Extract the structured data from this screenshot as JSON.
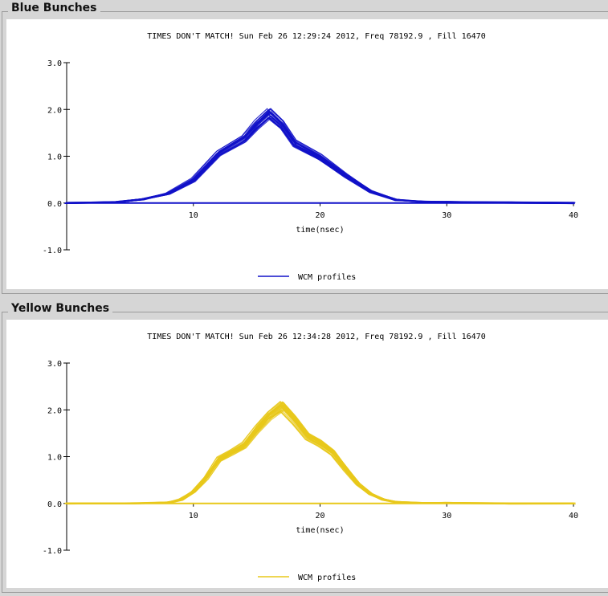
{
  "panels": [
    {
      "title": "Blue Bunches",
      "chart_data": {
        "type": "line",
        "title": "TIMES DON'T MATCH!   Sun Feb 26 12:29:24 2012, Freq 78192.9 , Fill 16470",
        "xlabel": "time(nsec)",
        "ylabel": "",
        "xlim": [
          0,
          40
        ],
        "ylim": [
          -1.0,
          3.0
        ],
        "xticks": [
          10,
          20,
          30,
          40
        ],
        "yticks": [
          "3.0",
          "2.0",
          "1.0",
          "0.0",
          "-1.0"
        ],
        "legend": "bottom-center",
        "color": "#1010c8",
        "series": [
          {
            "name": "WCM profiles",
            "x": [
              0,
              4,
              6,
              8,
              10,
              12,
              14,
              15,
              16,
              17,
              18,
              20,
              22,
              24,
              26,
              28,
              30,
              35,
              40
            ],
            "y": [
              0.0,
              0.02,
              0.08,
              0.2,
              0.5,
              1.08,
              1.4,
              1.7,
              1.95,
              1.7,
              1.3,
              1.0,
              0.6,
              0.25,
              0.07,
              0.03,
              0.02,
              0.01,
              0.0
            ]
          }
        ]
      }
    },
    {
      "title": "Yellow Bunches",
      "chart_data": {
        "type": "line",
        "title": "TIMES DON'T MATCH!   Sun Feb 26 12:34:28 2012, Freq 78192.9 , Fill 16470",
        "xlabel": "time(nsec)",
        "ylabel": "",
        "xlim": [
          0,
          40
        ],
        "ylim": [
          -1.0,
          3.0
        ],
        "xticks": [
          10,
          20,
          30,
          40
        ],
        "yticks": [
          "3.0",
          "2.0",
          "1.0",
          "0.0",
          "-1.0"
        ],
        "legend": "bottom-center",
        "color": "#e8c81a",
        "series": [
          {
            "name": "WCM profiles",
            "x": [
              0,
              5,
              8,
              9,
              10,
              11,
              12,
              13,
              14,
              15,
              16,
              17,
              18,
              19,
              20,
              21,
              22,
              23,
              24,
              25,
              26,
              28,
              30,
              35,
              40
            ],
            "y": [
              0.0,
              0.0,
              0.02,
              0.08,
              0.25,
              0.55,
              0.95,
              1.1,
              1.25,
              1.6,
              1.9,
              2.1,
              1.8,
              1.45,
              1.3,
              1.1,
              0.75,
              0.42,
              0.2,
              0.08,
              0.03,
              0.01,
              0.01,
              0.0,
              0.0
            ]
          }
        ]
      }
    }
  ]
}
